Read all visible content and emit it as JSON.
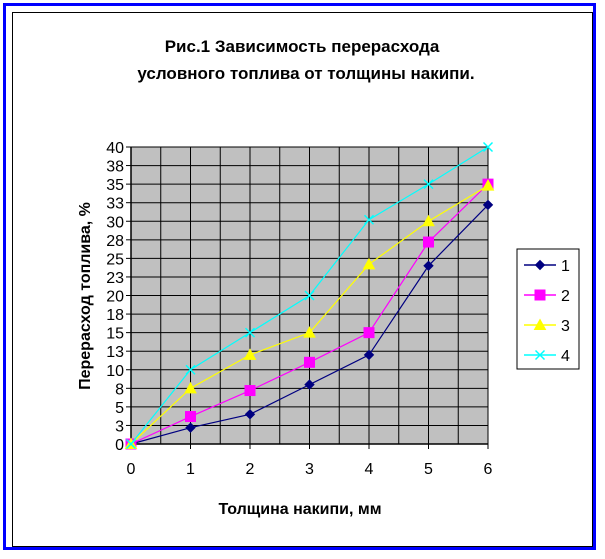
{
  "chart_data": {
    "type": "line",
    "title_line1": "Рис.1    Зависимость перерасхода",
    "title_line2": "условного топлива  от толщины накипи.",
    "xlabel": "Толщина накипи, мм",
    "ylabel": "Перерасход топлива, %",
    "x": [
      0,
      1,
      2,
      3,
      4,
      5,
      6
    ],
    "xlim": [
      0,
      6
    ],
    "ylim": [
      0,
      40
    ],
    "yticks": [
      0,
      3,
      5,
      8,
      10,
      13,
      15,
      18,
      20,
      23,
      25,
      28,
      30,
      33,
      35,
      38,
      40
    ],
    "grid": true,
    "legend_position": "right",
    "series": [
      {
        "name": "1",
        "color": "#000080",
        "marker": "diamond",
        "values": [
          0,
          2.2,
          4,
          8,
          12,
          24,
          32.2
        ]
      },
      {
        "name": "2",
        "color": "#ff00ff",
        "marker": "square",
        "values": [
          0,
          3.7,
          7.2,
          11,
          15,
          27.2,
          35
        ]
      },
      {
        "name": "3",
        "color": "#ffff00",
        "marker": "triangle",
        "values": [
          0,
          7.5,
          12,
          15,
          24.2,
          30,
          34.8
        ]
      },
      {
        "name": "4",
        "color": "#00ffff",
        "marker": "x",
        "values": [
          0,
          10,
          15,
          20,
          30.2,
          35,
          40
        ]
      }
    ]
  }
}
